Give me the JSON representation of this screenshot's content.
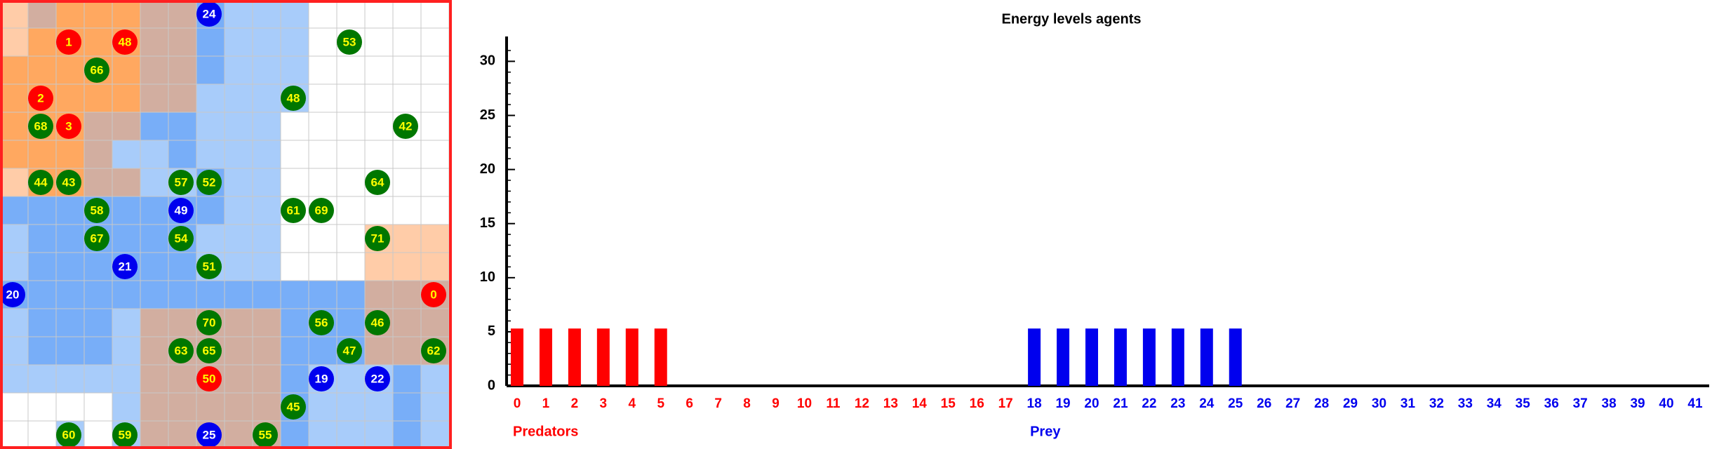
{
  "world": {
    "agents": [
      {
        "label": 24,
        "color": "#0000ee"
      },
      {
        "label": 1,
        "color": "#ff0000"
      },
      {
        "label": 48,
        "color": "#ff0000"
      },
      {
        "label": 53,
        "color": "#007700"
      },
      {
        "label": 66,
        "color": "#007700"
      },
      {
        "label": 48,
        "color": "#007700"
      },
      {
        "label": 2,
        "color": "#ff0000"
      },
      {
        "label": 68,
        "color": "#007700"
      },
      {
        "label": 3,
        "color": "#ff0000"
      },
      {
        "label": 42,
        "color": "#007700"
      },
      {
        "label": 44,
        "color": "#007700"
      },
      {
        "label": 43,
        "color": "#007700"
      },
      {
        "label": 57,
        "color": "#007700"
      },
      {
        "label": 52,
        "color": "#007700"
      },
      {
        "label": 64,
        "color": "#007700"
      },
      {
        "label": 58,
        "color": "#007700"
      },
      {
        "label": 49,
        "color": "#0000ee"
      },
      {
        "label": 61,
        "color": "#007700"
      },
      {
        "label": 69,
        "color": "#007700"
      },
      {
        "label": 67,
        "color": "#007700"
      },
      {
        "label": 54,
        "color": "#007700"
      },
      {
        "label": 71,
        "color": "#007700"
      },
      {
        "label": 21,
        "color": "#0000ee"
      },
      {
        "label": 51,
        "color": "#007700"
      },
      {
        "label": 20,
        "color": "#0000ee"
      },
      {
        "label": 0,
        "color": "#ff0000"
      },
      {
        "label": 70,
        "color": "#007700"
      },
      {
        "label": 56,
        "color": "#007700"
      },
      {
        "label": 46,
        "color": "#007700"
      },
      {
        "label": 63,
        "color": "#007700"
      },
      {
        "label": 65,
        "color": "#007700"
      },
      {
        "label": 47,
        "color": "#007700"
      },
      {
        "label": 62,
        "color": "#007700"
      },
      {
        "label": 50,
        "color": "#ff0000"
      },
      {
        "label": 19,
        "color": "#0000ee"
      },
      {
        "label": 22,
        "color": "#0000ee"
      },
      {
        "label": 45,
        "color": "#007700"
      },
      {
        "label": 60,
        "color": "#007700"
      },
      {
        "label": 59,
        "color": "#007700"
      },
      {
        "label": 25,
        "color": "#0000ee"
      },
      {
        "label": 55,
        "color": "#007700"
      }
    ]
  },
  "chart_data": {
    "type": "bar",
    "title": "Energy levels agents",
    "categories": [
      0,
      1,
      2,
      3,
      4,
      5,
      6,
      7,
      8,
      9,
      10,
      11,
      12,
      13,
      14,
      15,
      16,
      17,
      18,
      19,
      20,
      21,
      22,
      23,
      24,
      25,
      26,
      27,
      28,
      29,
      30,
      31,
      32,
      33,
      34,
      35,
      36,
      37,
      38,
      39,
      40,
      41
    ],
    "series": [
      {
        "name": "Predators",
        "color": "#ff0000",
        "values": [
          5.3,
          5.3,
          5.3,
          5.3,
          5.3,
          5.3,
          0,
          0,
          0,
          0,
          0,
          0,
          0,
          0,
          0,
          0,
          0,
          0,
          null,
          null,
          null,
          null,
          null,
          null,
          null,
          null,
          null,
          null,
          null,
          null,
          null,
          null,
          null,
          null,
          null,
          null,
          null,
          null,
          null,
          null,
          null,
          null
        ]
      },
      {
        "name": "Prey",
        "color": "#0000ee",
        "values": [
          null,
          null,
          null,
          null,
          null,
          null,
          null,
          null,
          null,
          null,
          null,
          null,
          null,
          null,
          null,
          null,
          null,
          null,
          5.3,
          5.3,
          5.3,
          5.3,
          5.3,
          5.3,
          5.3,
          5.3,
          0,
          0,
          0,
          0,
          0,
          0,
          0,
          0,
          0,
          0,
          0,
          0,
          0,
          0,
          0,
          0
        ]
      }
    ],
    "ylim": [
      0,
      31
    ],
    "yticks": [
      0,
      5,
      10,
      15,
      20,
      25,
      30
    ]
  }
}
